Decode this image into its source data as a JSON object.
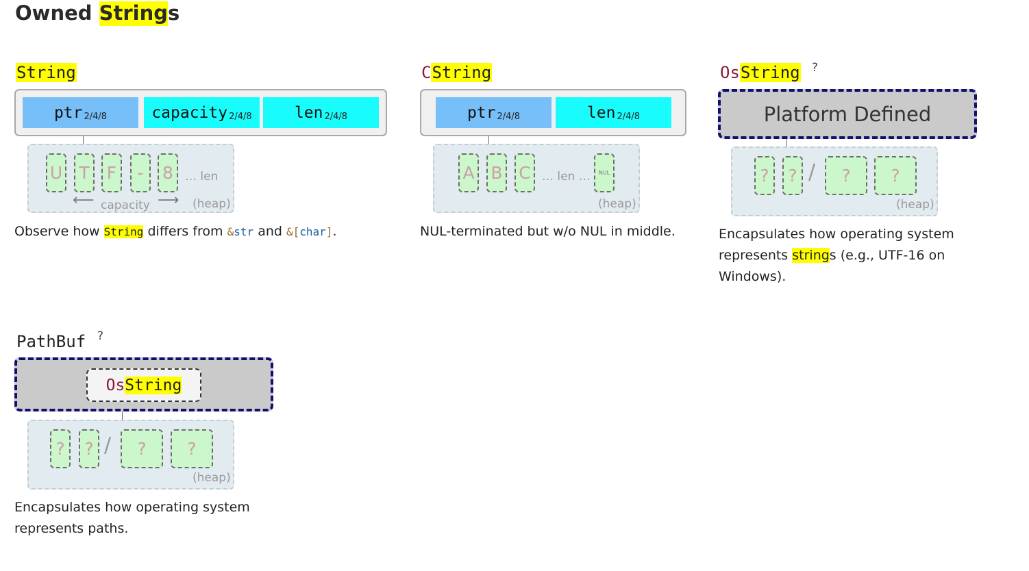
{
  "page": {
    "title_pre": "Owned ",
    "title_hl": "String",
    "title_post": "s"
  },
  "string_card": {
    "title": "String",
    "fields": [
      "ptr",
      "capacity",
      "len"
    ],
    "field_sub": "2/4/8",
    "heap_cells": [
      "U",
      "T",
      "F",
      "-",
      "8"
    ],
    "len_text": "… len",
    "capacity_text": "capacity",
    "heap_label": "(heap)",
    "desc_pre": "Observe how ",
    "desc_code1": "String",
    "desc_mid": " differs from ",
    "desc_code2_amp": "&",
    "desc_code2": "str",
    "desc_and": " and ",
    "desc_code3_amp": "&",
    "desc_code3_br1": "[",
    "desc_code3": "char",
    "desc_code3_br2": "]",
    "desc_end": "."
  },
  "cstring_card": {
    "title_red": "C",
    "title_hl": "String",
    "fields": [
      "ptr",
      "len"
    ],
    "field_sub": "2/4/8",
    "heap_cells": [
      "A",
      "B",
      "C"
    ],
    "len_text": "… len …",
    "nul_cell": "NUL",
    "heap_label": "(heap)",
    "desc": "NUL-terminated but w/o NUL in middle."
  },
  "osstring_card": {
    "title_red": "Os",
    "title_hl": "String",
    "qmark": "?",
    "platform_label": "Platform Defined",
    "heap_cells": [
      "?",
      "?",
      "?",
      "?"
    ],
    "slash": "/",
    "heap_label": "(heap)",
    "desc_pre": "Encapsulates how operating system represents ",
    "desc_hl": "string",
    "desc_post": "s (e.g., UTF-16 on Windows)."
  },
  "pathbuf_card": {
    "title": "PathBuf",
    "qmark": "?",
    "inner_red": "Os",
    "inner_hl": "String",
    "heap_cells": [
      "?",
      "?",
      "?",
      "?"
    ],
    "slash": "/",
    "heap_label": "(heap)",
    "desc": "Encapsulates how operating system represents paths."
  },
  "colors": {
    "highlight": "#ffff00",
    "ptr_field": "#77bff8",
    "len_field": "#19fcfc",
    "heap_bg": "#e2ebf0",
    "cell_bg": "#ccf6cc",
    "platform_border": "#101070",
    "type_red": "#8b1a3a"
  }
}
